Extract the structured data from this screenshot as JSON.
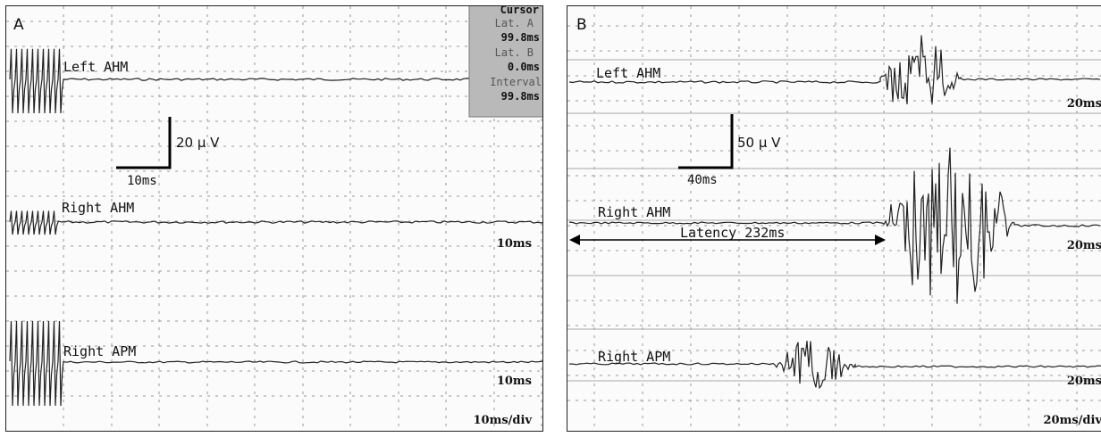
{
  "chart_data": [
    {
      "type": "line",
      "panel": "A",
      "sweep": "10ms/div",
      "scale_bar": {
        "amplitude_label": "20 μ V",
        "time_label": "10ms"
      },
      "cursor": {
        "title": "Cursor",
        "lat_a_label": "Lat. A",
        "lat_a_value": "99.8ms",
        "lat_b_label": "Lat. B",
        "lat_b_value": "0.0ms",
        "interval_label": "Interval",
        "interval_value": "99.8ms"
      },
      "series": [
        {
          "name": "Left AHM",
          "gain_label": ""
        },
        {
          "name": "Right AHM",
          "gain_label": "10ms"
        },
        {
          "name": "Right APM",
          "gain_label": "10ms"
        }
      ]
    },
    {
      "type": "line",
      "panel": "B",
      "sweep": "20ms/div",
      "scale_bar": {
        "amplitude_label": "50 μ V",
        "time_label": "40ms"
      },
      "latency_annotation": "Latency 232ms",
      "series": [
        {
          "name": "Left AHM",
          "gain_label": "20ms"
        },
        {
          "name": "Right AHM",
          "gain_label": "20ms"
        },
        {
          "name": "Right APM",
          "gain_label": "20ms"
        }
      ]
    }
  ]
}
